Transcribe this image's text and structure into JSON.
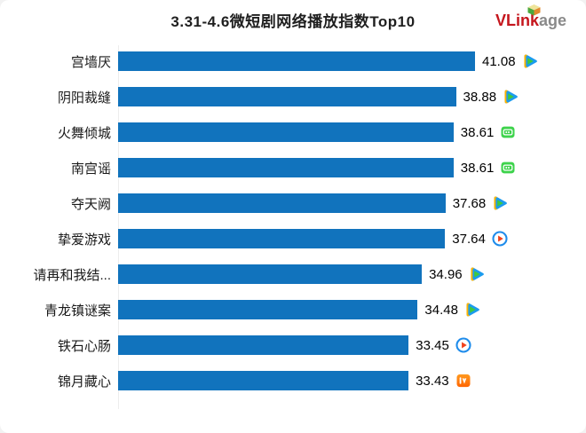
{
  "brand": {
    "name_primary": "VLink",
    "name_secondary": "age",
    "primary_color": "#c5161d",
    "secondary_color": "#8a8a8a",
    "gem_icon": "vlinkage-gem-icon"
  },
  "chart_data": {
    "type": "bar",
    "orientation": "horizontal",
    "title": "3.31-4.6微短剧网络播放指数Top10",
    "categories": [
      "宫墙厌",
      "阴阳裁缝",
      "火舞倾城",
      "南宫谣",
      "夺天阙",
      "挚爱游戏",
      "请再和我结...",
      "青龙镇谜案",
      "铁石心肠",
      "锦月藏心"
    ],
    "values": [
      41.08,
      38.88,
      38.61,
      38.61,
      37.68,
      37.64,
      34.96,
      34.48,
      33.45,
      33.43
    ],
    "value_labels": [
      "41.08",
      "38.88",
      "38.61",
      "38.61",
      "37.68",
      "37.64",
      "34.96",
      "34.48",
      "33.45",
      "33.43"
    ],
    "platforms": [
      "tencent-video",
      "tencent-video",
      "iqiyi",
      "iqiyi",
      "tencent-video",
      "youku",
      "tencent-video",
      "tencent-video",
      "youku",
      "mango-tv"
    ],
    "bar_color": "#1173bd",
    "xlim": [
      0,
      41.08
    ],
    "grid": false,
    "legend": "none",
    "value_label_position": "end-of-bar"
  }
}
